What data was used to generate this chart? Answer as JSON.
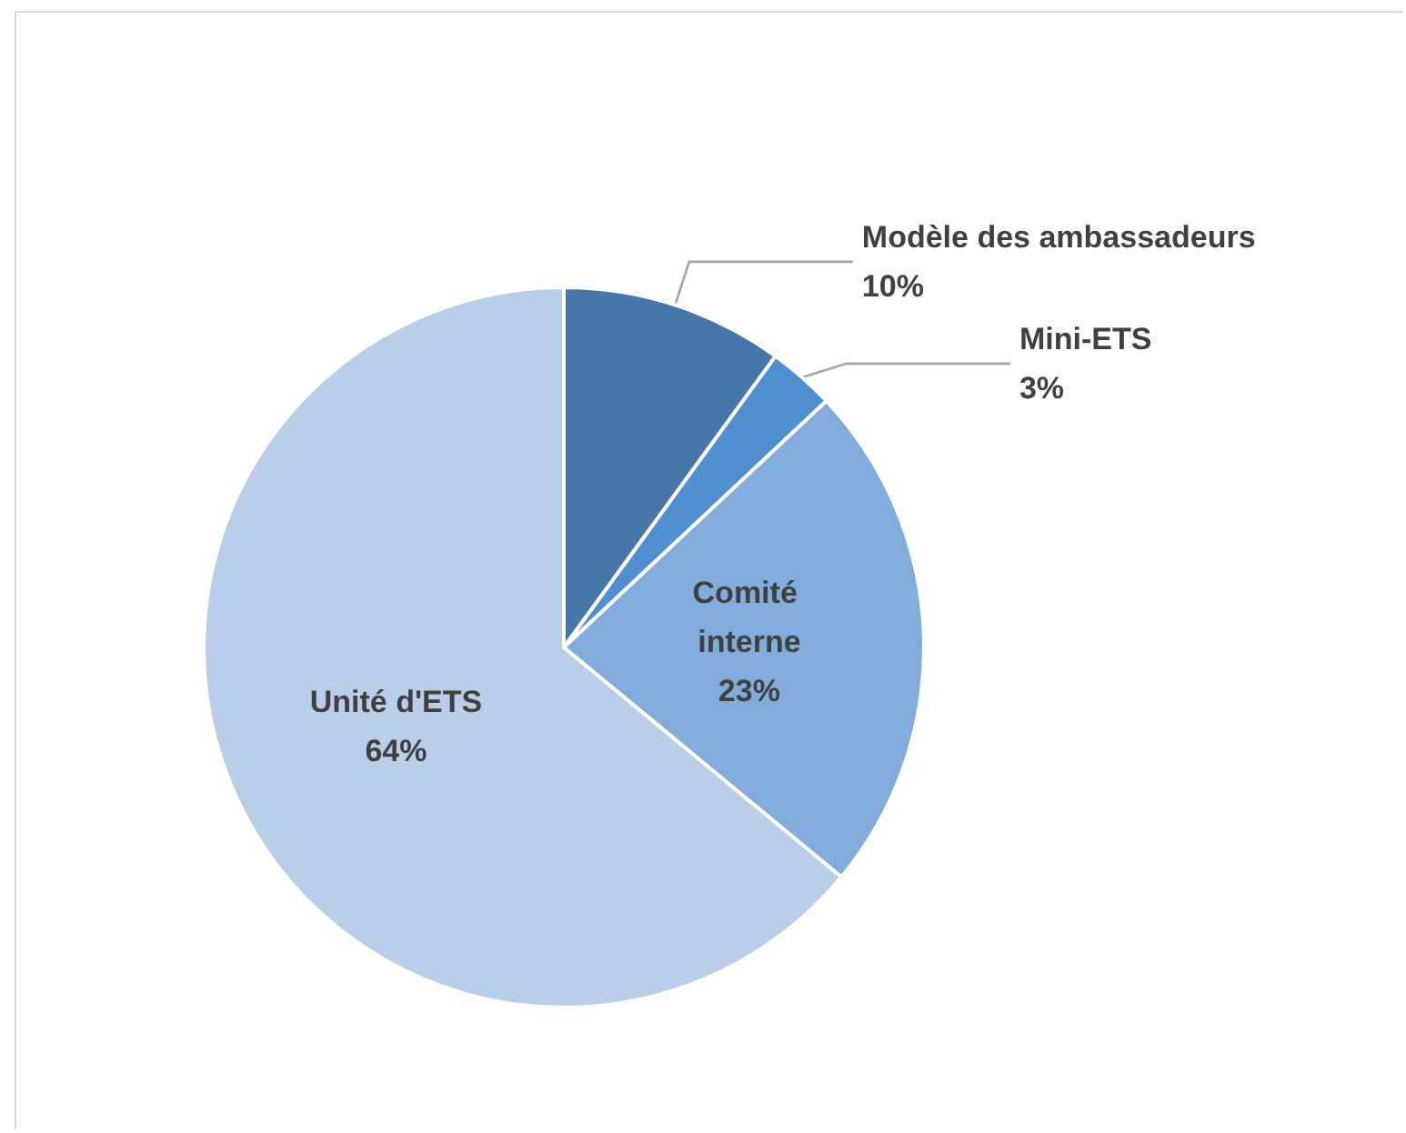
{
  "chart_data": {
    "type": "pie",
    "categories": [
      "Modèle des ambassadeurs",
      "Mini-ETS",
      "Comité interne",
      "Unité d'ETS"
    ],
    "values": [
      10,
      3,
      23,
      64
    ],
    "colors": [
      "#4677a8",
      "#4f8fcf",
      "#82acdc",
      "#b9cfe9"
    ],
    "value_labels": [
      "10%",
      "3%",
      "23%",
      "64%"
    ],
    "legend": false
  }
}
